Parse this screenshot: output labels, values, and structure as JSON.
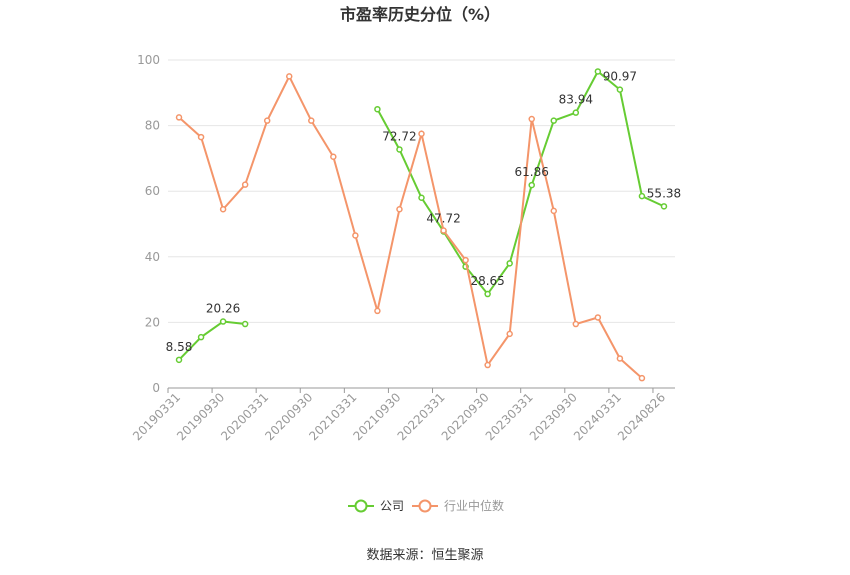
{
  "chart_data": {
    "type": "line",
    "title": "市盈率历史分位（%）",
    "categories": [
      "20190331",
      "20190630",
      "20190930",
      "20191231",
      "20200331",
      "20200630",
      "20200930",
      "20201231",
      "20210331",
      "20210630",
      "20210930",
      "20211231",
      "20220331",
      "20220630",
      "20220930",
      "20221231",
      "20230331",
      "20230630",
      "20230930",
      "20231231",
      "20240331",
      "20240630",
      "20240826"
    ],
    "tick_labels": [
      "20190331",
      "20190930",
      "20200331",
      "20200930",
      "20210331",
      "20210930",
      "20220331",
      "20220930",
      "20230331",
      "20230930",
      "20240331",
      "20240826"
    ],
    "ylim": [
      0,
      100
    ],
    "yticks": [
      0,
      20,
      40,
      60,
      80,
      100
    ],
    "grid": true,
    "legend_position": "bottom",
    "series": [
      {
        "name": "公司",
        "color": "#66cc33",
        "values": [
          8.58,
          15.5,
          20.26,
          19.5,
          null,
          null,
          null,
          null,
          null,
          85.0,
          72.72,
          58.0,
          47.72,
          37.0,
          28.65,
          38.0,
          61.86,
          81.5,
          83.94,
          96.5,
          90.97,
          58.5,
          55.38
        ],
        "labels": [
          {
            "index": 0,
            "text": "8.58"
          },
          {
            "index": 2,
            "text": "20.26"
          },
          {
            "index": 10,
            "text": "72.72"
          },
          {
            "index": 12,
            "text": "47.72"
          },
          {
            "index": 14,
            "text": "28.65"
          },
          {
            "index": 16,
            "text": "61.86"
          },
          {
            "index": 18,
            "text": "83.94"
          },
          {
            "index": 20,
            "text": "90.97"
          },
          {
            "index": 22,
            "text": "55.38"
          }
        ]
      },
      {
        "name": "行业中位数",
        "color": "#f4956a",
        "values": [
          82.5,
          76.5,
          54.5,
          62.0,
          81.5,
          95.0,
          81.5,
          70.5,
          46.5,
          23.5,
          54.5,
          77.5,
          48.0,
          39.0,
          7.0,
          16.5,
          82.0,
          54.0,
          19.5,
          21.5,
          9.0,
          3.0,
          null
        ]
      }
    ]
  },
  "footer": {
    "source": "数据来源：恒生聚源"
  }
}
